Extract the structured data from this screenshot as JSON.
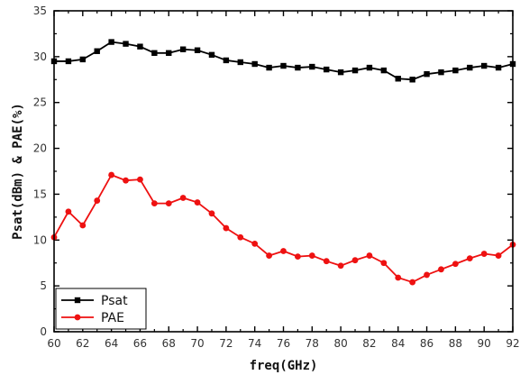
{
  "chart_data": {
    "type": "line",
    "xlabel": "freq(GHz)",
    "ylabel": "Psat(dBm) & PAE(%)",
    "xlim": [
      60,
      92
    ],
    "ylim": [
      0,
      35
    ],
    "xticks": [
      "60",
      "62",
      "64",
      "66",
      "68",
      "70",
      "72",
      "74",
      "76",
      "78",
      "80",
      "82",
      "84",
      "86",
      "88",
      "90",
      "92"
    ],
    "yticks": [
      "0",
      "5",
      "10",
      "15",
      "20",
      "25",
      "30",
      "35"
    ],
    "grid": false,
    "legend_position": "bottom-left",
    "x": [
      60,
      61,
      62,
      63,
      64,
      65,
      66,
      67,
      68,
      69,
      70,
      71,
      72,
      73,
      74,
      75,
      76,
      77,
      78,
      79,
      80,
      81,
      82,
      83,
      84,
      85,
      86,
      87,
      88,
      89,
      90,
      91,
      92
    ],
    "series": [
      {
        "name": "Psat",
        "color": "#000000",
        "marker": "square",
        "values": [
          29.5,
          29.5,
          29.7,
          30.6,
          31.6,
          31.4,
          31.1,
          30.4,
          30.4,
          30.8,
          30.7,
          30.2,
          29.6,
          29.4,
          29.2,
          28.8,
          29.0,
          28.8,
          28.9,
          28.6,
          28.3,
          28.5,
          28.8,
          28.5,
          27.6,
          27.5,
          28.1,
          28.3,
          28.5,
          28.8,
          29.0,
          28.8,
          29.2
        ]
      },
      {
        "name": "PAE",
        "color": "#ee1111",
        "marker": "circle",
        "values": [
          10.3,
          13.1,
          11.6,
          14.3,
          17.1,
          16.5,
          16.6,
          14.0,
          14.0,
          14.6,
          14.1,
          12.9,
          11.3,
          10.3,
          9.6,
          8.3,
          8.8,
          8.2,
          8.3,
          7.7,
          7.2,
          7.8,
          8.3,
          7.5,
          5.9,
          5.4,
          6.2,
          6.8,
          7.4,
          8.0,
          8.5,
          8.3,
          9.5
        ]
      }
    ]
  }
}
